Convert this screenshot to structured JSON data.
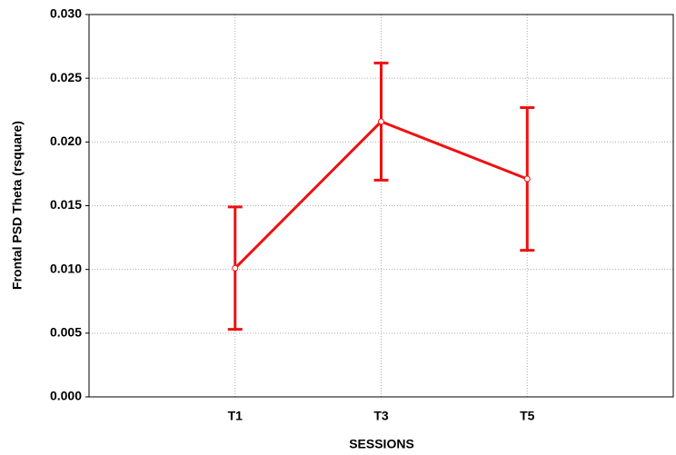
{
  "chart_data": {
    "type": "line",
    "xlabel": "SESSIONS",
    "ylabel": "Frontal PSD Theta (rsquare)",
    "categories": [
      "T1",
      "T3",
      "T5"
    ],
    "values": [
      0.0101,
      0.0216,
      0.0171
    ],
    "errors": [
      0.0048,
      0.0046,
      0.0056
    ],
    "color": "#ee1111",
    "ylim": [
      0,
      0.03
    ],
    "yticks": [
      {
        "value": 0,
        "label": "0.000"
      },
      {
        "value": 0.005,
        "label": "0.005"
      },
      {
        "value": 0.01,
        "label": "0.010"
      },
      {
        "value": 0.015,
        "label": "0.015"
      },
      {
        "value": 0.02,
        "label": "0.020"
      },
      {
        "value": 0.025,
        "label": "0.025"
      },
      {
        "value": 0.03,
        "label": "0.030"
      }
    ],
    "grid": true
  }
}
